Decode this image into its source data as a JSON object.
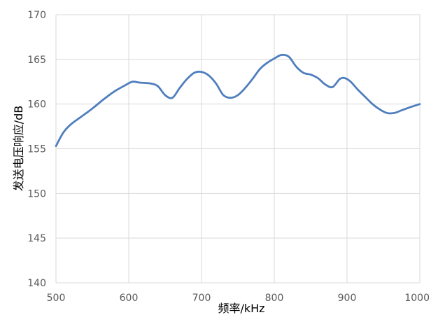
{
  "chart_data": {
    "type": "line",
    "title": "",
    "xlabel": "频率/kHz",
    "ylabel": "发送电压响应/dB",
    "xlim": [
      500,
      1000
    ],
    "ylim": [
      140,
      170
    ],
    "x_ticks": [
      500,
      600,
      700,
      800,
      900,
      1000
    ],
    "y_ticks": [
      140,
      145,
      150,
      155,
      160,
      165,
      170
    ],
    "grid": true,
    "legend": "none",
    "series": [
      {
        "color": "#4F7EBD",
        "x": [
          500,
          510,
          520,
          535,
          550,
          565,
          580,
          595,
          605,
          615,
          630,
          640,
          650,
          660,
          670,
          680,
          690,
          700,
          710,
          720,
          730,
          740,
          750,
          760,
          770,
          780,
          790,
          800,
          810,
          820,
          830,
          840,
          850,
          860,
          870,
          880,
          890,
          897,
          905,
          915,
          925,
          935,
          945,
          955,
          965,
          975,
          985,
          1000
        ],
        "y": [
          155.3,
          156.8,
          157.7,
          158.6,
          159.5,
          160.5,
          161.4,
          162.1,
          162.5,
          162.4,
          162.3,
          162.0,
          161.0,
          160.7,
          161.8,
          162.8,
          163.5,
          163.6,
          163.2,
          162.3,
          161.0,
          160.7,
          161.0,
          161.8,
          162.8,
          163.9,
          164.6,
          165.1,
          165.5,
          165.3,
          164.2,
          163.5,
          163.3,
          162.9,
          162.2,
          161.9,
          162.8,
          162.9,
          162.5,
          161.6,
          160.8,
          160.0,
          159.4,
          159.0,
          159.0,
          159.3,
          159.6,
          160.0
        ]
      }
    ]
  }
}
